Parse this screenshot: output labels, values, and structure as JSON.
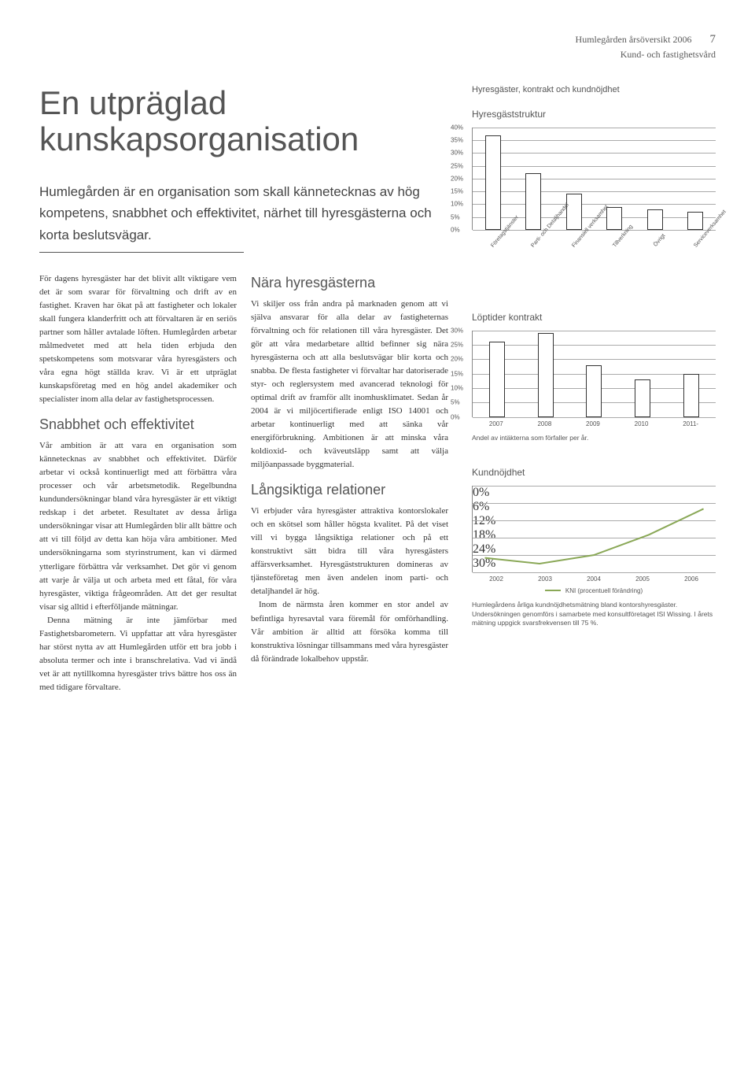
{
  "header": {
    "line1": "Humlegården årsöversikt 2006",
    "pagenum": "7",
    "line2": "Kund- och fastighetsvård"
  },
  "title": "En utpräglad kunskapsorganisation",
  "lead": "Humlegården är en organisation som skall kännetecknas av hög kompetens, snabbhet och effektivitet, närhet till hyresgästerna och korta beslutsvägar.",
  "body": {
    "p1": "För dagens hyresgäster har det blivit allt viktigare vem det är som svarar för förvaltning och drift av en fastighet. Kraven har ökat på att fastigheter och lokaler skall fungera klanderfritt och att förvaltaren är en seriös partner som håller avtalade löften. Humlegården arbetar målmedvetet med att hela tiden erbjuda den spetskompetens som motsvarar våra hyresgästers och våra egna högt ställda krav. Vi är ett utpräglat kunskapsföretag med en hög andel akademiker och specialister inom alla delar av fastighetsprocessen.",
    "h1": "Snabbhet och effektivitet",
    "p2": "Vår ambition är att vara en organisation som kännetecknas av snabbhet och effektivitet. Därför arbetar vi också kontinuerligt med att förbättra våra processer och vår arbetsmetodik. Regelbundna kundundersökningar bland våra hyresgäster är ett viktigt redskap i det arbetet. Resultatet av dessa årliga undersökningar visar att Humlegården blir allt bättre och att vi till följd av detta kan höja våra ambitioner. Med undersökningarna som styrinstrument, kan vi därmed ytterligare förbättra vår verksamhet. Det gör vi genom att varje år välja ut och arbeta med ett fåtal, för våra hyresgäster, viktiga frågeområden. Att det ger resultat visar sig alltid i efterföljande mätningar.",
    "p3": "Denna mätning är inte jämförbar med Fastighetsbarometern. Vi uppfattar att våra hyresgäster har störst nytta av att Humlegården utför ett bra jobb i absoluta termer och inte i branschrelativa. Vad vi ändå vet är att nytillkomna hyresgäster trivs bättre hos oss än med tidigare förvaltare.",
    "h2": "Nära hyresgästerna",
    "p4": "Vi skiljer oss från andra på marknaden genom att vi själva ansvarar för alla delar av fastigheternas förvaltning och för relationen till våra hyresgäster. Det gör att våra medarbetare alltid befinner sig nära hyresgästerna och att alla beslutsvägar blir korta och snabba. De flesta fastigheter vi förvaltar har datoriserade styr- och reglersystem med avancerad teknologi för optimal drift av framför allt inomhusklimatet. Sedan år 2004 är vi miljöcertifierade enligt ISO 14001 och arbetar kontinuerligt med att sänka vår energiförbrukning. Ambitionen är att minska våra koldioxid- och kväveutsläpp samt att välja miljöanpassade byggmaterial.",
    "h3": "Långsiktiga relationer",
    "p5": "Vi erbjuder våra hyresgäster attraktiva kontorslokaler och en skötsel som håller högsta kvalitet. På det viset vill vi bygga långsiktiga relationer och på ett konstruktivt sätt bidra till våra hyresgästers affärsverksamhet. Hyresgäststrukturen domineras av tjänsteföretag men även andelen inom parti- och detaljhandel är hög.",
    "p6": "Inom de närmsta åren kommer en stor andel av befintliga hyresavtal vara föremål för omförhandling. Vår ambition är alltid att försöka komma till konstruktiva lösningar tillsammans med våra hyresgäster då förändrade lokalbehov uppstår."
  },
  "sidebar": {
    "overtitle": "Hyresgäster, kontrakt och kundnöjdhet",
    "chart1": {
      "title": "Hyresgäststruktur",
      "type": "bar",
      "ylim": [
        0,
        40
      ],
      "ytick_step": 5,
      "categories": [
        "Företagstjänster",
        "Parti- och Detaljhandel",
        "Finansiell verksamhet",
        "Tillverkning",
        "Övrigt",
        "Serviceverksamhet"
      ],
      "values": [
        37,
        22,
        14,
        9,
        8,
        7
      ],
      "bar_fill": "#ffffff",
      "bar_stroke": "#333333",
      "grid_color": "#aaaaaa",
      "axis_color": "#888888",
      "label_fontsize": 8
    },
    "chart2": {
      "title": "Löptider kontrakt",
      "type": "bar",
      "ylim": [
        0,
        30
      ],
      "ytick_step": 5,
      "categories": [
        "2007",
        "2008",
        "2009",
        "2010",
        "2011-"
      ],
      "values": [
        26,
        29,
        18,
        13,
        15
      ],
      "bar_fill": "#ffffff",
      "bar_stroke": "#333333",
      "grid_color": "#aaaaaa",
      "axis_color": "#888888",
      "caption": "Andel av intäkterna som förfaller per år."
    },
    "chart3": {
      "title": "Kundnöjdhet",
      "type": "line",
      "ylim": [
        0,
        30
      ],
      "yticks": [
        0,
        6,
        12,
        18,
        24,
        30
      ],
      "categories": [
        "2002",
        "2003",
        "2004",
        "2005",
        "2006"
      ],
      "values": [
        5,
        3,
        6,
        13,
        22
      ],
      "line_color": "#8aa857",
      "line_width": 2,
      "grid_color": "#aaaaaa",
      "legend": "KNI (procentuell förändring)",
      "caption": "Humlegårdens årliga kundnöjdhetsmätning bland kontorshyresgäster. Undersökningen genomförs i samarbete med konsultföretaget ISI Wissing. I årets mätning uppgick svarsfrekvensen till 75 %."
    }
  }
}
